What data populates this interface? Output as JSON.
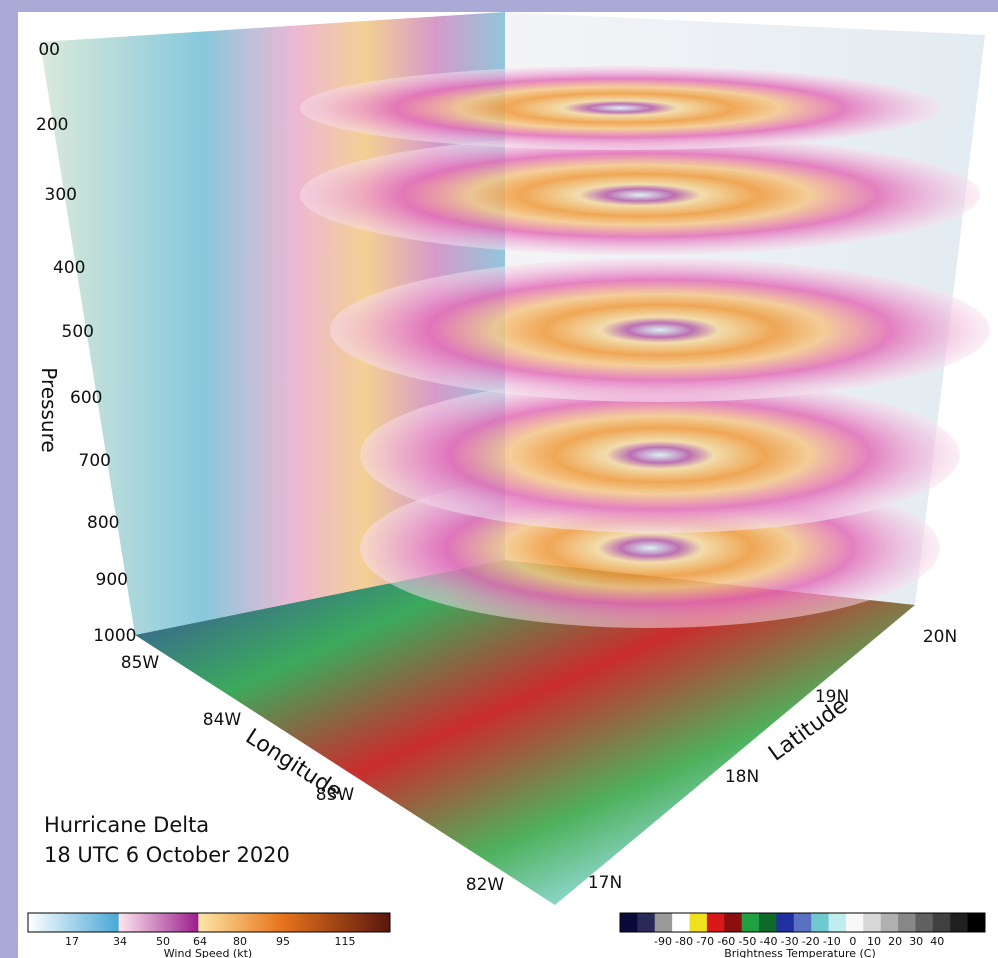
{
  "title": {
    "line1": "Hurricane Delta",
    "line2": "18 UTC 6 October 2020"
  },
  "axes": {
    "pressure": {
      "label": "Pressure",
      "ticks": [
        "00",
        "200",
        "300",
        "400",
        "500",
        "600",
        "700",
        "800",
        "900",
        "1000"
      ]
    },
    "longitude": {
      "label": "Longitude",
      "ticks": [
        "85W",
        "84W",
        "83W",
        "82W"
      ]
    },
    "latitude": {
      "label": "Latitude",
      "ticks": [
        "17N",
        "18N",
        "19N",
        "20N"
      ]
    }
  },
  "colorbars": [
    {
      "label": "Wind Speed (kt)",
      "ticks": [
        "17",
        "34",
        "50",
        "64",
        "80",
        "95",
        "115"
      ]
    },
    {
      "label": "Brightness Temperature (C)",
      "ticks": [
        "-90",
        "-80",
        "-70",
        "-60",
        "-50",
        "-40",
        "-30",
        "-20",
        "-10",
        "0",
        "10",
        "20",
        "30",
        "40"
      ]
    }
  ]
}
